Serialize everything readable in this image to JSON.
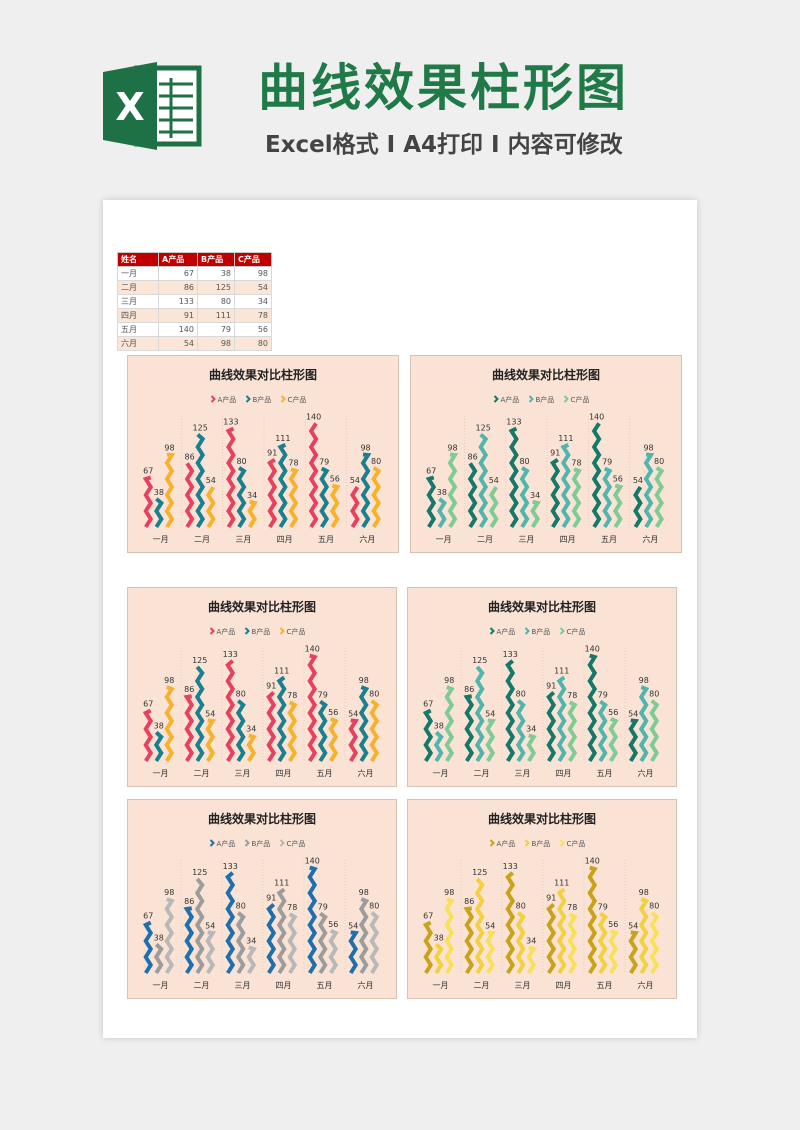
{
  "header": {
    "title": "曲线效果柱形图",
    "subtitle": "Excel格式 I A4打印 I 内容可修改",
    "logo_letter": "X",
    "logo_color": "#1e7145"
  },
  "table": {
    "headers": [
      "姓名",
      "A产品",
      "B产品",
      "C产品"
    ],
    "rows": [
      [
        "一月",
        "67",
        "38",
        "98"
      ],
      [
        "二月",
        "86",
        "125",
        "54"
      ],
      [
        "三月",
        "133",
        "80",
        "34"
      ],
      [
        "四月",
        "91",
        "111",
        "78"
      ],
      [
        "五月",
        "140",
        "79",
        "56"
      ],
      [
        "六月",
        "54",
        "98",
        "80"
      ]
    ]
  },
  "chart_data": [
    {
      "type": "bar",
      "title": "曲线效果对比柱形图",
      "legend_position": "top",
      "categories": [
        "一月",
        "二月",
        "三月",
        "四月",
        "五月",
        "六月"
      ],
      "series": [
        {
          "name": "A产品",
          "values": [
            67,
            86,
            133,
            91,
            140,
            54
          ],
          "color": "#e8405f"
        },
        {
          "name": "B产品",
          "values": [
            38,
            125,
            80,
            111,
            79,
            98
          ],
          "color": "#1a7f8e"
        },
        {
          "name": "C产品",
          "values": [
            98,
            54,
            34,
            78,
            56,
            80
          ],
          "color": "#f6b22c"
        }
      ]
    },
    {
      "type": "bar",
      "title": "曲线效果对比柱形图",
      "legend_position": "top",
      "categories": [
        "一月",
        "二月",
        "三月",
        "四月",
        "五月",
        "六月"
      ],
      "series": [
        {
          "name": "A产品",
          "values": [
            67,
            86,
            133,
            91,
            140,
            54
          ],
          "color": "#157868"
        },
        {
          "name": "B产品",
          "values": [
            38,
            125,
            80,
            111,
            79,
            98
          ],
          "color": "#4fb5ad"
        },
        {
          "name": "C产品",
          "values": [
            98,
            54,
            34,
            78,
            56,
            80
          ],
          "color": "#7fcb95"
        }
      ]
    },
    {
      "type": "bar",
      "title": "曲线效果对比柱形图",
      "legend_position": "top",
      "categories": [
        "一月",
        "二月",
        "三月",
        "四月",
        "五月",
        "六月"
      ],
      "series": [
        {
          "name": "A产品",
          "values": [
            67,
            86,
            133,
            91,
            140,
            54
          ],
          "color": "#e8405f"
        },
        {
          "name": "B产品",
          "values": [
            38,
            125,
            80,
            111,
            79,
            98
          ],
          "color": "#1a7f8e"
        },
        {
          "name": "C产品",
          "values": [
            98,
            54,
            34,
            78,
            56,
            80
          ],
          "color": "#f6b22c"
        }
      ]
    },
    {
      "type": "bar",
      "title": "曲线效果对比柱形图",
      "legend_position": "top",
      "categories": [
        "一月",
        "二月",
        "三月",
        "四月",
        "五月",
        "六月"
      ],
      "series": [
        {
          "name": "A产品",
          "values": [
            67,
            86,
            133,
            91,
            140,
            54
          ],
          "color": "#157868"
        },
        {
          "name": "B产品",
          "values": [
            38,
            125,
            80,
            111,
            79,
            98
          ],
          "color": "#4fb5ad"
        },
        {
          "name": "C产品",
          "values": [
            98,
            54,
            34,
            78,
            56,
            80
          ],
          "color": "#7fcb95"
        }
      ]
    },
    {
      "type": "bar",
      "title": "曲线效果对比柱形图",
      "legend_position": "top",
      "categories": [
        "一月",
        "二月",
        "三月",
        "四月",
        "五月",
        "六月"
      ],
      "series": [
        {
          "name": "A产品",
          "values": [
            67,
            86,
            133,
            91,
            140,
            54
          ],
          "color": "#1f6fad"
        },
        {
          "name": "B产品",
          "values": [
            38,
            125,
            80,
            111,
            79,
            98
          ],
          "color": "#9c9c9c"
        },
        {
          "name": "C产品",
          "values": [
            98,
            54,
            34,
            78,
            56,
            80
          ],
          "color": "#b8b8b8"
        }
      ]
    },
    {
      "type": "bar",
      "title": "曲线效果对比柱形图",
      "legend_position": "top",
      "categories": [
        "一月",
        "二月",
        "三月",
        "四月",
        "五月",
        "六月"
      ],
      "series": [
        {
          "name": "A产品",
          "values": [
            67,
            86,
            133,
            91,
            140,
            54
          ],
          "color": "#c9a21a"
        },
        {
          "name": "B产品",
          "values": [
            38,
            125,
            80,
            111,
            79,
            98
          ],
          "color": "#f3d03e"
        },
        {
          "name": "C产品",
          "values": [
            98,
            54,
            34,
            78,
            56,
            80
          ],
          "color": "#f8e05a"
        }
      ]
    }
  ]
}
